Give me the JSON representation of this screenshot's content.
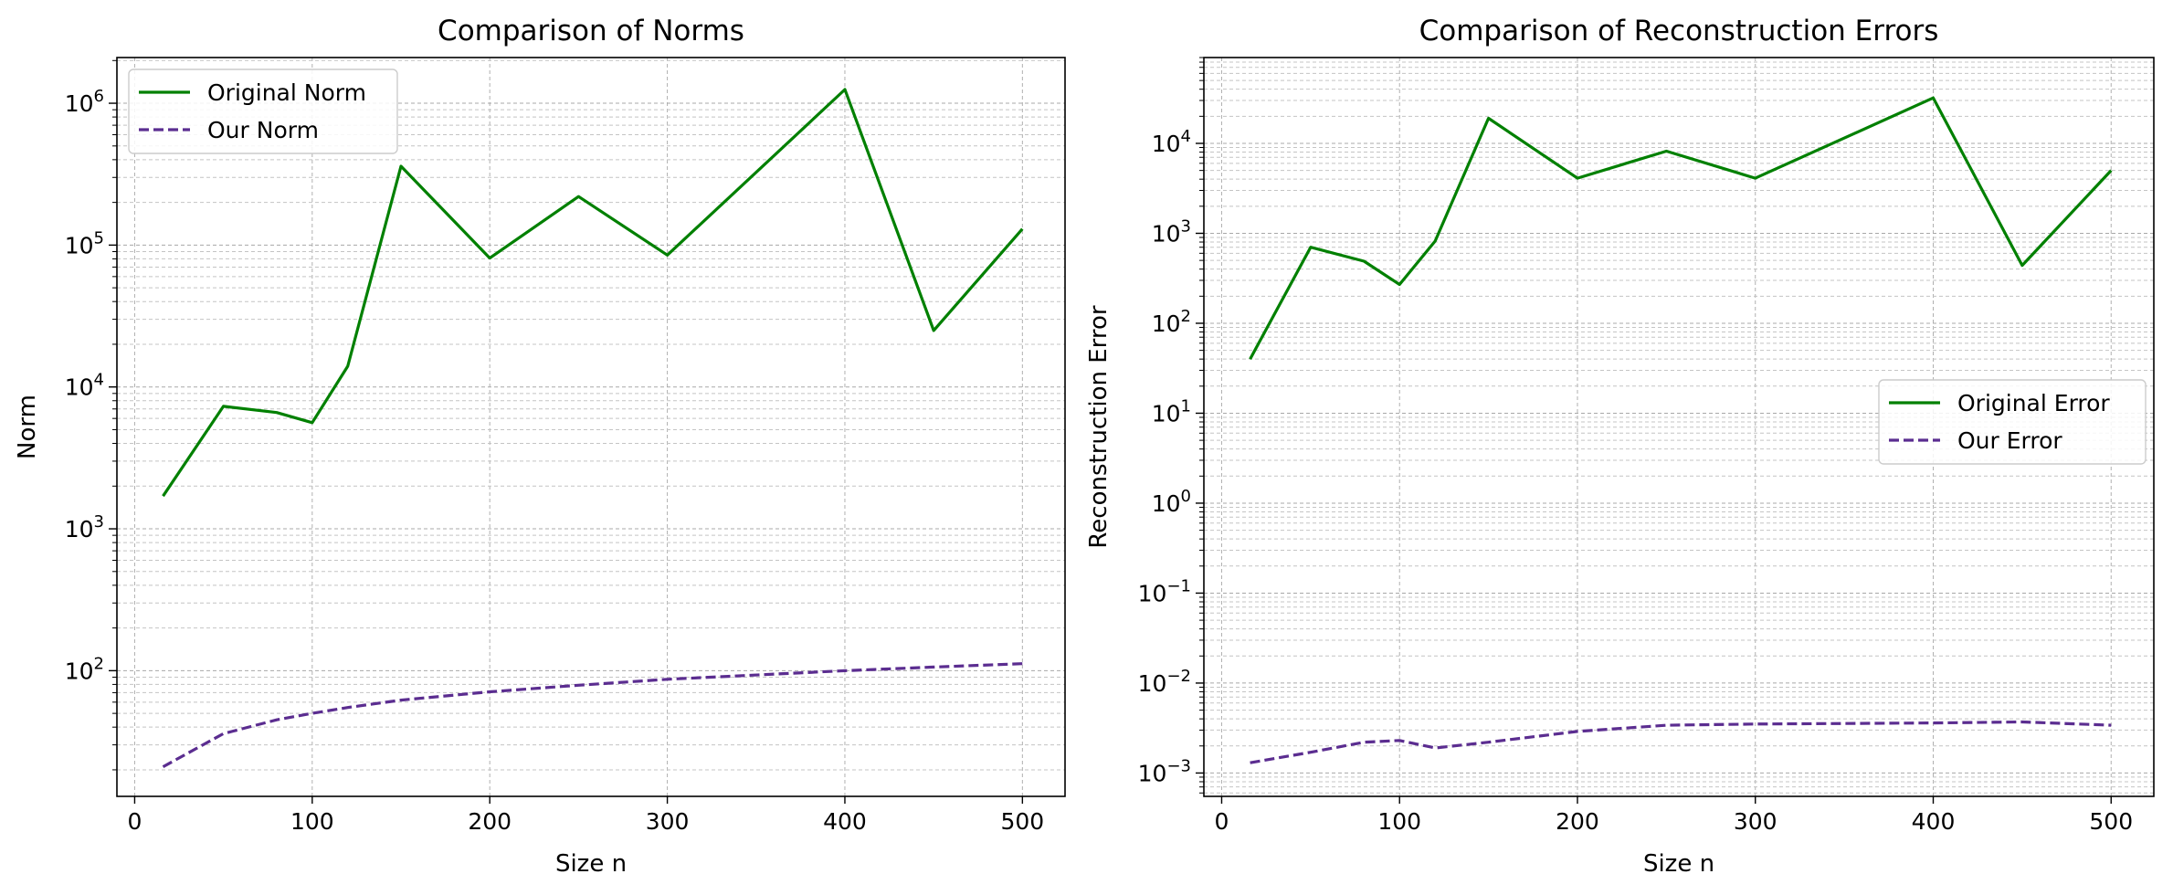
{
  "chart_data": [
    {
      "type": "line",
      "title": "Comparison of Norms",
      "xlabel": "Size n",
      "ylabel": "Norm",
      "yscale": "log",
      "xlim": [
        -10,
        524
      ],
      "ylim": [
        13,
        2100000
      ],
      "x_ticks": [
        0,
        100,
        200,
        300,
        400,
        500
      ],
      "y_ticks": [
        {
          "value": 100,
          "base": "10",
          "exp": "2"
        },
        {
          "value": 1000,
          "base": "10",
          "exp": "3"
        },
        {
          "value": 10000,
          "base": "10",
          "exp": "4"
        },
        {
          "value": 100000,
          "base": "10",
          "exp": "5"
        },
        {
          "value": 1000000,
          "base": "10",
          "exp": "6"
        }
      ],
      "grid": true,
      "legend_position": "top-left",
      "x": [
        16,
        50,
        80,
        100,
        120,
        150,
        200,
        250,
        300,
        400,
        450,
        500
      ],
      "series": [
        {
          "name": "Original Norm",
          "color": "#008000",
          "style": "solid",
          "values": [
            1700,
            7300,
            6600,
            5600,
            14000,
            360000,
            81000,
            220000,
            85000,
            1250000,
            25000,
            130000
          ]
        },
        {
          "name": "Our Norm",
          "color": "#5b2d90",
          "style": "dashed",
          "values": [
            21,
            36,
            45,
            50,
            55,
            62,
            71,
            79,
            87,
            100,
            106,
            112
          ]
        }
      ]
    },
    {
      "type": "line",
      "title": "Comparison of Reconstruction Errors",
      "xlabel": "Size n",
      "ylabel": "Reconstruction Error",
      "yscale": "log",
      "xlim": [
        -10,
        524
      ],
      "ylim": [
        0.00055,
        90000
      ],
      "x_ticks": [
        0,
        100,
        200,
        300,
        400,
        500
      ],
      "y_ticks": [
        {
          "value": 0.001,
          "base": "10",
          "exp": "−3"
        },
        {
          "value": 0.01,
          "base": "10",
          "exp": "−2"
        },
        {
          "value": 0.1,
          "base": "10",
          "exp": "−1"
        },
        {
          "value": 1,
          "base": "10",
          "exp": "0"
        },
        {
          "value": 10,
          "base": "10",
          "exp": "1"
        },
        {
          "value": 100,
          "base": "10",
          "exp": "2"
        },
        {
          "value": 1000,
          "base": "10",
          "exp": "3"
        },
        {
          "value": 10000,
          "base": "10",
          "exp": "4"
        }
      ],
      "grid": true,
      "legend_position": "center-right",
      "x": [
        16,
        50,
        80,
        100,
        120,
        150,
        200,
        250,
        300,
        400,
        450,
        500
      ],
      "series": [
        {
          "name": "Original Error",
          "color": "#008000",
          "style": "solid",
          "values": [
            40,
            700,
            490,
            270,
            820,
            19000,
            4100,
            8200,
            4100,
            32000,
            440,
            5000
          ]
        },
        {
          "name": "Our Error",
          "color": "#5b2d90",
          "style": "dashed",
          "values": [
            0.0013,
            0.0017,
            0.0022,
            0.0023,
            0.0019,
            0.0022,
            0.0029,
            0.0034,
            0.0035,
            0.0036,
            0.0037,
            0.0034
          ]
        }
      ]
    }
  ]
}
